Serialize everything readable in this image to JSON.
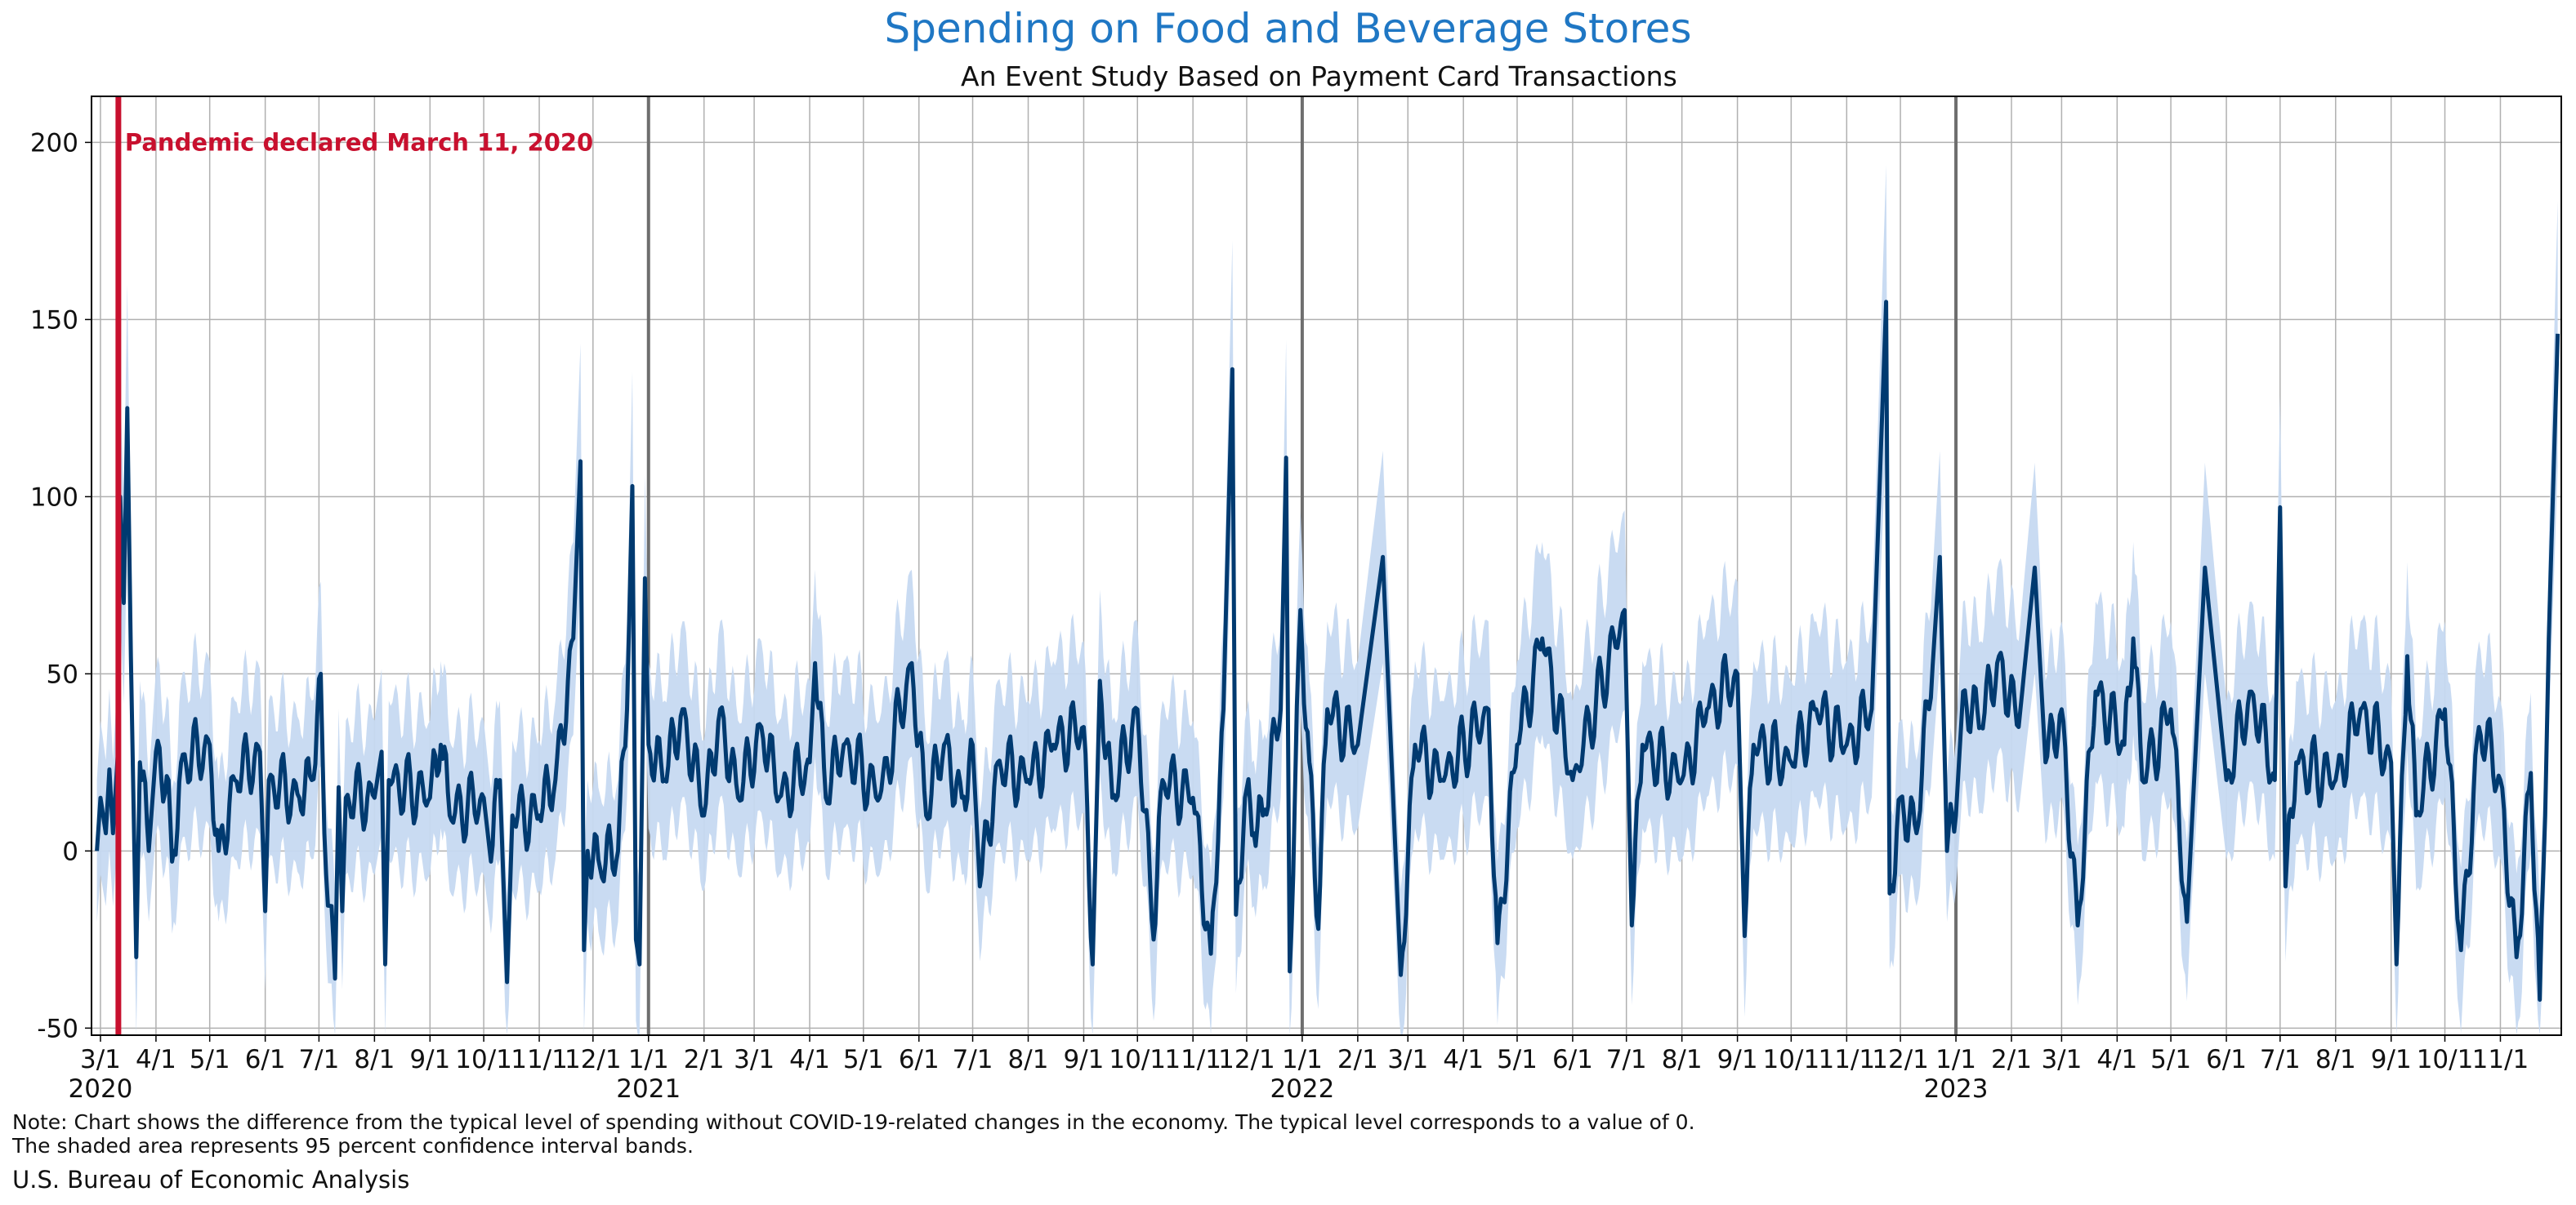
{
  "colors": {
    "title": "#1f77c4",
    "line": "#003a70",
    "band": "#c6d9f1",
    "event": "#c8102e",
    "grid": "#b0b0b0",
    "year_divider": "#6e6e6e"
  },
  "chart_data": {
    "type": "line",
    "title": "Spending on Food and Beverage Stores",
    "subtitle": "An Event Study Based on Payment Card Transactions",
    "xlabel": "",
    "ylabel": "",
    "xlim": [
      "2020-02-25",
      "2023-12-05"
    ],
    "ylim": [
      -52,
      213
    ],
    "y_ticks": [
      -50,
      0,
      50,
      100,
      150,
      200
    ],
    "grid": true,
    "confidence_band": "95 percent confidence interval",
    "x_tick_labels": [
      {
        "date": "2020-03-01",
        "label": "3/1",
        "year": "2020"
      },
      {
        "date": "2020-04-01",
        "label": "4/1"
      },
      {
        "date": "2020-05-01",
        "label": "5/1"
      },
      {
        "date": "2020-06-01",
        "label": "6/1"
      },
      {
        "date": "2020-07-01",
        "label": "7/1"
      },
      {
        "date": "2020-08-01",
        "label": "8/1"
      },
      {
        "date": "2020-09-01",
        "label": "9/1"
      },
      {
        "date": "2020-10-01",
        "label": "10/1"
      },
      {
        "date": "2020-11-01",
        "label": "11/1"
      },
      {
        "date": "2020-12-01",
        "label": "12/1"
      },
      {
        "date": "2021-01-01",
        "label": "1/1",
        "year": "2021"
      },
      {
        "date": "2021-02-01",
        "label": "2/1"
      },
      {
        "date": "2021-03-01",
        "label": "3/1"
      },
      {
        "date": "2021-04-01",
        "label": "4/1"
      },
      {
        "date": "2021-05-01",
        "label": "5/1"
      },
      {
        "date": "2021-06-01",
        "label": "6/1"
      },
      {
        "date": "2021-07-01",
        "label": "7/1"
      },
      {
        "date": "2021-08-01",
        "label": "8/1"
      },
      {
        "date": "2021-09-01",
        "label": "9/1"
      },
      {
        "date": "2021-10-01",
        "label": "10/1"
      },
      {
        "date": "2021-11-01",
        "label": "11/1"
      },
      {
        "date": "2021-12-01",
        "label": "12/1"
      },
      {
        "date": "2022-01-01",
        "label": "1/1",
        "year": "2022"
      },
      {
        "date": "2022-02-01",
        "label": "2/1"
      },
      {
        "date": "2022-03-01",
        "label": "3/1"
      },
      {
        "date": "2022-04-01",
        "label": "4/1"
      },
      {
        "date": "2022-05-01",
        "label": "5/1"
      },
      {
        "date": "2022-06-01",
        "label": "6/1"
      },
      {
        "date": "2022-07-01",
        "label": "7/1"
      },
      {
        "date": "2022-08-01",
        "label": "8/1"
      },
      {
        "date": "2022-09-01",
        "label": "9/1"
      },
      {
        "date": "2022-10-01",
        "label": "10/1"
      },
      {
        "date": "2022-11-01",
        "label": "11/1"
      },
      {
        "date": "2022-12-01",
        "label": "12/1"
      },
      {
        "date": "2023-01-01",
        "label": "1/1",
        "year": "2023"
      },
      {
        "date": "2023-02-01",
        "label": "2/1"
      },
      {
        "date": "2023-03-01",
        "label": "3/1"
      },
      {
        "date": "2023-04-01",
        "label": "4/1"
      },
      {
        "date": "2023-05-01",
        "label": "5/1"
      },
      {
        "date": "2023-06-01",
        "label": "6/1"
      },
      {
        "date": "2023-07-01",
        "label": "7/1"
      },
      {
        "date": "2023-08-01",
        "label": "8/1"
      },
      {
        "date": "2023-09-01",
        "label": "9/1"
      },
      {
        "date": "2023-10-01",
        "label": "10/1"
      },
      {
        "date": "2023-11-01",
        "label": "11/1"
      }
    ],
    "year_dividers": [
      "2021-01-01",
      "2022-01-01",
      "2023-01-01"
    ],
    "event": {
      "date": "2020-03-11",
      "label": "Pandemic declared March 11, 2020"
    },
    "series": [
      {
        "values": [
          {
            "x": "2020-02-28",
            "y": 0
          },
          {
            "x": "2020-03-01",
            "y": 15
          },
          {
            "x": "2020-03-04",
            "y": 5
          },
          {
            "x": "2020-03-06",
            "y": 23
          },
          {
            "x": "2020-03-08",
            "y": 5
          },
          {
            "x": "2020-03-11",
            "y": 30
          },
          {
            "x": "2020-03-12",
            "y": 100
          },
          {
            "x": "2020-03-14",
            "y": 70
          },
          {
            "x": "2020-03-16",
            "y": 125
          },
          {
            "x": "2020-03-18",
            "y": 55
          },
          {
            "x": "2020-03-21",
            "y": -30
          },
          {
            "x": "2020-03-23",
            "y": 25
          },
          {
            "x": "2020-03-28",
            "y": 0
          },
          {
            "x": "2020-04-01",
            "y": 28
          },
          {
            "x": "2020-04-08",
            "y": 20
          },
          {
            "x": "2020-04-10",
            "y": -3
          },
          {
            "x": "2020-04-15",
            "y": 25
          },
          {
            "x": "2020-05-01",
            "y": 30
          },
          {
            "x": "2020-05-06",
            "y": 0
          },
          {
            "x": "2020-05-15",
            "y": 20
          },
          {
            "x": "2020-05-29",
            "y": 28
          },
          {
            "x": "2020-06-01",
            "y": -17
          },
          {
            "x": "2020-06-03",
            "y": 20
          },
          {
            "x": "2020-06-20",
            "y": 15
          },
          {
            "x": "2020-06-27",
            "y": 20
          },
          {
            "x": "2020-07-02",
            "y": 50
          },
          {
            "x": "2020-07-04",
            "y": 5
          },
          {
            "x": "2020-07-10",
            "y": -36
          },
          {
            "x": "2020-07-12",
            "y": 18
          },
          {
            "x": "2020-07-14",
            "y": -17
          },
          {
            "x": "2020-07-16",
            "y": 15
          },
          {
            "x": "2020-08-01",
            "y": 15
          },
          {
            "x": "2020-08-05",
            "y": 28
          },
          {
            "x": "2020-08-07",
            "y": -32
          },
          {
            "x": "2020-08-09",
            "y": 20
          },
          {
            "x": "2020-09-01",
            "y": 15
          },
          {
            "x": "2020-09-07",
            "y": 30
          },
          {
            "x": "2020-09-12",
            "y": 10
          },
          {
            "x": "2020-10-01",
            "y": 15
          },
          {
            "x": "2020-10-05",
            "y": -3
          },
          {
            "x": "2020-10-10",
            "y": 20
          },
          {
            "x": "2020-10-14",
            "y": -37
          },
          {
            "x": "2020-10-17",
            "y": 10
          },
          {
            "x": "2020-11-01",
            "y": 10
          },
          {
            "x": "2020-11-10",
            "y": 20
          },
          {
            "x": "2020-11-20",
            "y": 60
          },
          {
            "x": "2020-11-24",
            "y": 110
          },
          {
            "x": "2020-11-26",
            "y": -28
          },
          {
            "x": "2020-11-28",
            "y": 0
          },
          {
            "x": "2020-12-05",
            "y": -5
          },
          {
            "x": "2020-12-15",
            "y": 0
          },
          {
            "x": "2020-12-20",
            "y": 40
          },
          {
            "x": "2020-12-23",
            "y": 103
          },
          {
            "x": "2020-12-25",
            "y": -25
          },
          {
            "x": "2020-12-27",
            "y": -32
          },
          {
            "x": "2020-12-30",
            "y": 77
          },
          {
            "x": "2021-01-01",
            "y": 30
          },
          {
            "x": "2021-01-10",
            "y": 20
          },
          {
            "x": "2021-01-20",
            "y": 40
          },
          {
            "x": "2021-02-01",
            "y": 10
          },
          {
            "x": "2021-02-10",
            "y": 40
          },
          {
            "x": "2021-02-20",
            "y": 15
          },
          {
            "x": "2021-03-05",
            "y": 35
          },
          {
            "x": "2021-03-15",
            "y": 15
          },
          {
            "x": "2021-04-01",
            "y": 25
          },
          {
            "x": "2021-04-04",
            "y": 53
          },
          {
            "x": "2021-04-10",
            "y": 15
          },
          {
            "x": "2021-04-20",
            "y": 30
          },
          {
            "x": "2021-05-10",
            "y": 15
          },
          {
            "x": "2021-05-28",
            "y": 53
          },
          {
            "x": "2021-06-05",
            "y": 10
          },
          {
            "x": "2021-06-15",
            "y": 30
          },
          {
            "x": "2021-06-25",
            "y": 15
          },
          {
            "x": "2021-07-01",
            "y": 30
          },
          {
            "x": "2021-07-05",
            "y": -10
          },
          {
            "x": "2021-07-15",
            "y": 25
          },
          {
            "x": "2021-08-01",
            "y": 20
          },
          {
            "x": "2021-08-15",
            "y": 30
          },
          {
            "x": "2021-09-01",
            "y": 35
          },
          {
            "x": "2021-09-06",
            "y": -32
          },
          {
            "x": "2021-09-10",
            "y": 48
          },
          {
            "x": "2021-09-17",
            "y": 15
          },
          {
            "x": "2021-10-01",
            "y": 40
          },
          {
            "x": "2021-10-10",
            "y": -25
          },
          {
            "x": "2021-10-15",
            "y": 20
          },
          {
            "x": "2021-11-01",
            "y": 15
          },
          {
            "x": "2021-11-11",
            "y": -29
          },
          {
            "x": "2021-11-18",
            "y": 40
          },
          {
            "x": "2021-11-23",
            "y": 136
          },
          {
            "x": "2021-11-25",
            "y": -18
          },
          {
            "x": "2021-11-30",
            "y": 15
          },
          {
            "x": "2021-12-05",
            "y": 5
          },
          {
            "x": "2021-12-10",
            "y": 10
          },
          {
            "x": "2021-12-20",
            "y": 40
          },
          {
            "x": "2021-12-23",
            "y": 111
          },
          {
            "x": "2021-12-25",
            "y": -34
          },
          {
            "x": "2021-12-31",
            "y": 68
          },
          {
            "x": "2022-01-05",
            "y": 25
          },
          {
            "x": "2022-01-10",
            "y": -22
          },
          {
            "x": "2022-01-15",
            "y": 40
          },
          {
            "x": "2022-02-01",
            "y": 30
          },
          {
            "x": "2022-02-15",
            "y": 83
          },
          {
            "x": "2022-02-25",
            "y": -35
          },
          {
            "x": "2022-03-05",
            "y": 30
          },
          {
            "x": "2022-03-20",
            "y": 20
          },
          {
            "x": "2022-04-15",
            "y": 40
          },
          {
            "x": "2022-04-20",
            "y": -26
          },
          {
            "x": "2022-05-01",
            "y": 30
          },
          {
            "x": "2022-05-15",
            "y": 60
          },
          {
            "x": "2022-06-01",
            "y": 20
          },
          {
            "x": "2022-06-30",
            "y": 68
          },
          {
            "x": "2022-07-04",
            "y": -21
          },
          {
            "x": "2022-07-10",
            "y": 30
          },
          {
            "x": "2022-08-01",
            "y": 20
          },
          {
            "x": "2022-08-15",
            "y": 40
          },
          {
            "x": "2022-09-01",
            "y": 50
          },
          {
            "x": "2022-09-05",
            "y": -24
          },
          {
            "x": "2022-09-10",
            "y": 30
          },
          {
            "x": "2022-10-01",
            "y": 25
          },
          {
            "x": "2022-10-15",
            "y": 40
          },
          {
            "x": "2022-11-01",
            "y": 30
          },
          {
            "x": "2022-11-15",
            "y": 40
          },
          {
            "x": "2022-11-23",
            "y": 155
          },
          {
            "x": "2022-11-25",
            "y": -12
          },
          {
            "x": "2022-12-01",
            "y": 15
          },
          {
            "x": "2022-12-10",
            "y": 5
          },
          {
            "x": "2022-12-20",
            "y": 60
          },
          {
            "x": "2022-12-23",
            "y": 83
          },
          {
            "x": "2022-12-27",
            "y": 0
          },
          {
            "x": "2023-01-01",
            "y": 10
          },
          {
            "x": "2023-01-05",
            "y": 45
          },
          {
            "x": "2023-01-15",
            "y": 35
          },
          {
            "x": "2023-01-25",
            "y": 55
          },
          {
            "x": "2023-02-05",
            "y": 35
          },
          {
            "x": "2023-02-14",
            "y": 80
          },
          {
            "x": "2023-02-20",
            "y": 25
          },
          {
            "x": "2023-03-01",
            "y": 40
          },
          {
            "x": "2023-03-10",
            "y": -21
          },
          {
            "x": "2023-03-20",
            "y": 45
          },
          {
            "x": "2023-04-05",
            "y": 30
          },
          {
            "x": "2023-04-10",
            "y": 60
          },
          {
            "x": "2023-04-15",
            "y": 20
          },
          {
            "x": "2023-05-01",
            "y": 40
          },
          {
            "x": "2023-05-10",
            "y": -20
          },
          {
            "x": "2023-05-20",
            "y": 80
          },
          {
            "x": "2023-06-01",
            "y": 20
          },
          {
            "x": "2023-06-15",
            "y": 45
          },
          {
            "x": "2023-06-28",
            "y": 20
          },
          {
            "x": "2023-07-01",
            "y": 97
          },
          {
            "x": "2023-07-04",
            "y": -10
          },
          {
            "x": "2023-07-10",
            "y": 25
          },
          {
            "x": "2023-08-01",
            "y": 20
          },
          {
            "x": "2023-08-15",
            "y": 40
          },
          {
            "x": "2023-09-01",
            "y": 25
          },
          {
            "x": "2023-09-04",
            "y": -32
          },
          {
            "x": "2023-09-10",
            "y": 55
          },
          {
            "x": "2023-09-15",
            "y": 10
          },
          {
            "x": "2023-10-01",
            "y": 40
          },
          {
            "x": "2023-10-10",
            "y": -28
          },
          {
            "x": "2023-10-20",
            "y": 35
          },
          {
            "x": "2023-11-01",
            "y": 20
          },
          {
            "x": "2023-11-10",
            "y": -30
          },
          {
            "x": "2023-11-18",
            "y": 22
          },
          {
            "x": "2023-11-23",
            "y": -42
          },
          {
            "x": "2023-11-28",
            "y": 60
          },
          {
            "x": "2023-12-03",
            "y": 146
          }
        ]
      }
    ]
  },
  "footer": {
    "note_line1": "Note: Chart shows the difference from the typical level of spending without COVID-19-related changes in the economy. The typical level corresponds to a value of 0.",
    "note_line2": "The shaded area represents 95 percent confidence interval bands.",
    "source": "U.S. Bureau of Economic Analysis"
  }
}
